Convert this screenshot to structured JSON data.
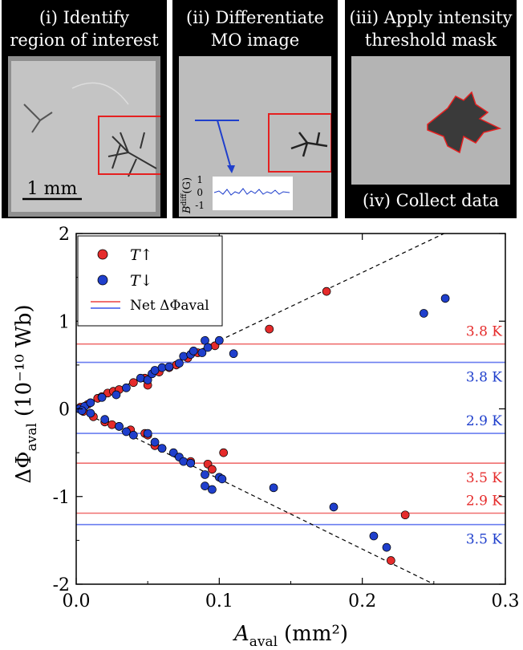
{
  "panels": [
    {
      "title_line1": "(i) Identify",
      "title_line2": "region of interest",
      "scale_label": "1 mm"
    },
    {
      "title_line1": "(ii) Differentiate",
      "title_line2": "MO image",
      "inset_ylabel": "B",
      "inset_ylabel_sup": "diff",
      "inset_ylabel_unit": "(G)",
      "inset_ticks": [
        "1",
        "0",
        "-1"
      ]
    },
    {
      "title_line1": "(iii) Apply intensity",
      "title_line2": "threshold mask",
      "footer": "(iv) Collect data"
    }
  ],
  "colors": {
    "red": "#e52b2b",
    "blue": "#1f3fcc",
    "red_line": "#f07070",
    "blue_line": "#6a7ef0"
  },
  "chart_data": {
    "type": "scatter",
    "xlabel": "A",
    "xlabel_sub": "aval",
    "xlabel_unit": "(mm²)",
    "ylabel": "ΔΦ",
    "ylabel_sub": "aval",
    "ylabel_unit": "(10⁻¹⁰ Wb)",
    "xlim": [
      0,
      0.3
    ],
    "ylim": [
      -2,
      2
    ],
    "xticks": [
      "0.0",
      "0.1",
      "0.2",
      "0.3"
    ],
    "yticks": [
      "2",
      "1",
      "0",
      "-1",
      "-2"
    ],
    "legend": {
      "placement": "top-left",
      "entries": [
        "T↑",
        "T↓",
        "Net ΔΦaval"
      ]
    },
    "hlines": [
      {
        "y": 0.74,
        "color": "red",
        "label": "3.8 K"
      },
      {
        "y": 0.53,
        "color": "blue",
        "label": "3.8 K"
      },
      {
        "y": -0.28,
        "color": "blue",
        "label": "2.9 K"
      },
      {
        "y": -0.62,
        "color": "red",
        "label": "3.5 K"
      },
      {
        "y": -1.19,
        "color": "red",
        "label": "2.9 K"
      },
      {
        "y": -1.32,
        "color": "blue",
        "label": "3.5 K"
      }
    ],
    "fit_lines": [
      {
        "x": [
          0,
          0.27
        ],
        "y": [
          0,
          2.1
        ]
      },
      {
        "x": [
          0,
          0.25
        ],
        "y": [
          0,
          -2.0
        ]
      }
    ],
    "series": [
      {
        "name": "T↑",
        "color": "red",
        "points": [
          [
            0.003,
            0.02
          ],
          [
            0.008,
            0.05
          ],
          [
            0.015,
            0.12
          ],
          [
            0.018,
            0.14
          ],
          [
            0.022,
            0.18
          ],
          [
            0.026,
            0.2
          ],
          [
            0.03,
            0.22
          ],
          [
            0.04,
            0.3
          ],
          [
            0.048,
            0.35
          ],
          [
            0.05,
            0.27
          ],
          [
            0.058,
            0.42
          ],
          [
            0.065,
            0.47
          ],
          [
            0.07,
            0.5
          ],
          [
            0.078,
            0.58
          ],
          [
            0.085,
            0.64
          ],
          [
            0.097,
            0.72
          ],
          [
            0.135,
            0.91
          ],
          [
            0.175,
            1.34
          ],
          [
            0.005,
            -0.03
          ],
          [
            0.012,
            -0.09
          ],
          [
            0.02,
            -0.15
          ],
          [
            0.025,
            -0.18
          ],
          [
            0.03,
            -0.2
          ],
          [
            0.038,
            -0.24
          ],
          [
            0.048,
            -0.28
          ],
          [
            0.05,
            -0.3
          ],
          [
            0.055,
            -0.42
          ],
          [
            0.06,
            -0.45
          ],
          [
            0.08,
            -0.6
          ],
          [
            0.092,
            -0.63
          ],
          [
            0.095,
            -0.69
          ],
          [
            0.103,
            -0.5
          ],
          [
            0.23,
            -1.21
          ],
          [
            0.22,
            -1.73
          ]
        ]
      },
      {
        "name": "T↓",
        "color": "blue",
        "points": [
          [
            0.002,
            0.0
          ],
          [
            0.006,
            0.03
          ],
          [
            0.01,
            0.07
          ],
          [
            0.018,
            0.13
          ],
          [
            0.028,
            0.16
          ],
          [
            0.035,
            0.24
          ],
          [
            0.045,
            0.35
          ],
          [
            0.05,
            0.33
          ],
          [
            0.053,
            0.4
          ],
          [
            0.055,
            0.44
          ],
          [
            0.06,
            0.47
          ],
          [
            0.065,
            0.48
          ],
          [
            0.072,
            0.52
          ],
          [
            0.075,
            0.6
          ],
          [
            0.08,
            0.62
          ],
          [
            0.082,
            0.66
          ],
          [
            0.088,
            0.64
          ],
          [
            0.09,
            0.78
          ],
          [
            0.092,
            0.7
          ],
          [
            0.1,
            0.78
          ],
          [
            0.11,
            0.63
          ],
          [
            0.243,
            1.09
          ],
          [
            0.258,
            1.26
          ],
          [
            0.004,
            -0.02
          ],
          [
            0.01,
            -0.05
          ],
          [
            0.02,
            -0.12
          ],
          [
            0.03,
            -0.2
          ],
          [
            0.035,
            -0.26
          ],
          [
            0.04,
            -0.3
          ],
          [
            0.05,
            -0.28
          ],
          [
            0.055,
            -0.38
          ],
          [
            0.06,
            -0.45
          ],
          [
            0.068,
            -0.5
          ],
          [
            0.072,
            -0.55
          ],
          [
            0.075,
            -0.6
          ],
          [
            0.08,
            -0.62
          ],
          [
            0.09,
            -0.75
          ],
          [
            0.09,
            -0.88
          ],
          [
            0.095,
            -0.92
          ],
          [
            0.1,
            -0.78
          ],
          [
            0.102,
            -0.8
          ],
          [
            0.138,
            -0.9
          ],
          [
            0.18,
            -1.12
          ],
          [
            0.208,
            -1.45
          ],
          [
            0.217,
            -1.58
          ]
        ]
      }
    ]
  }
}
